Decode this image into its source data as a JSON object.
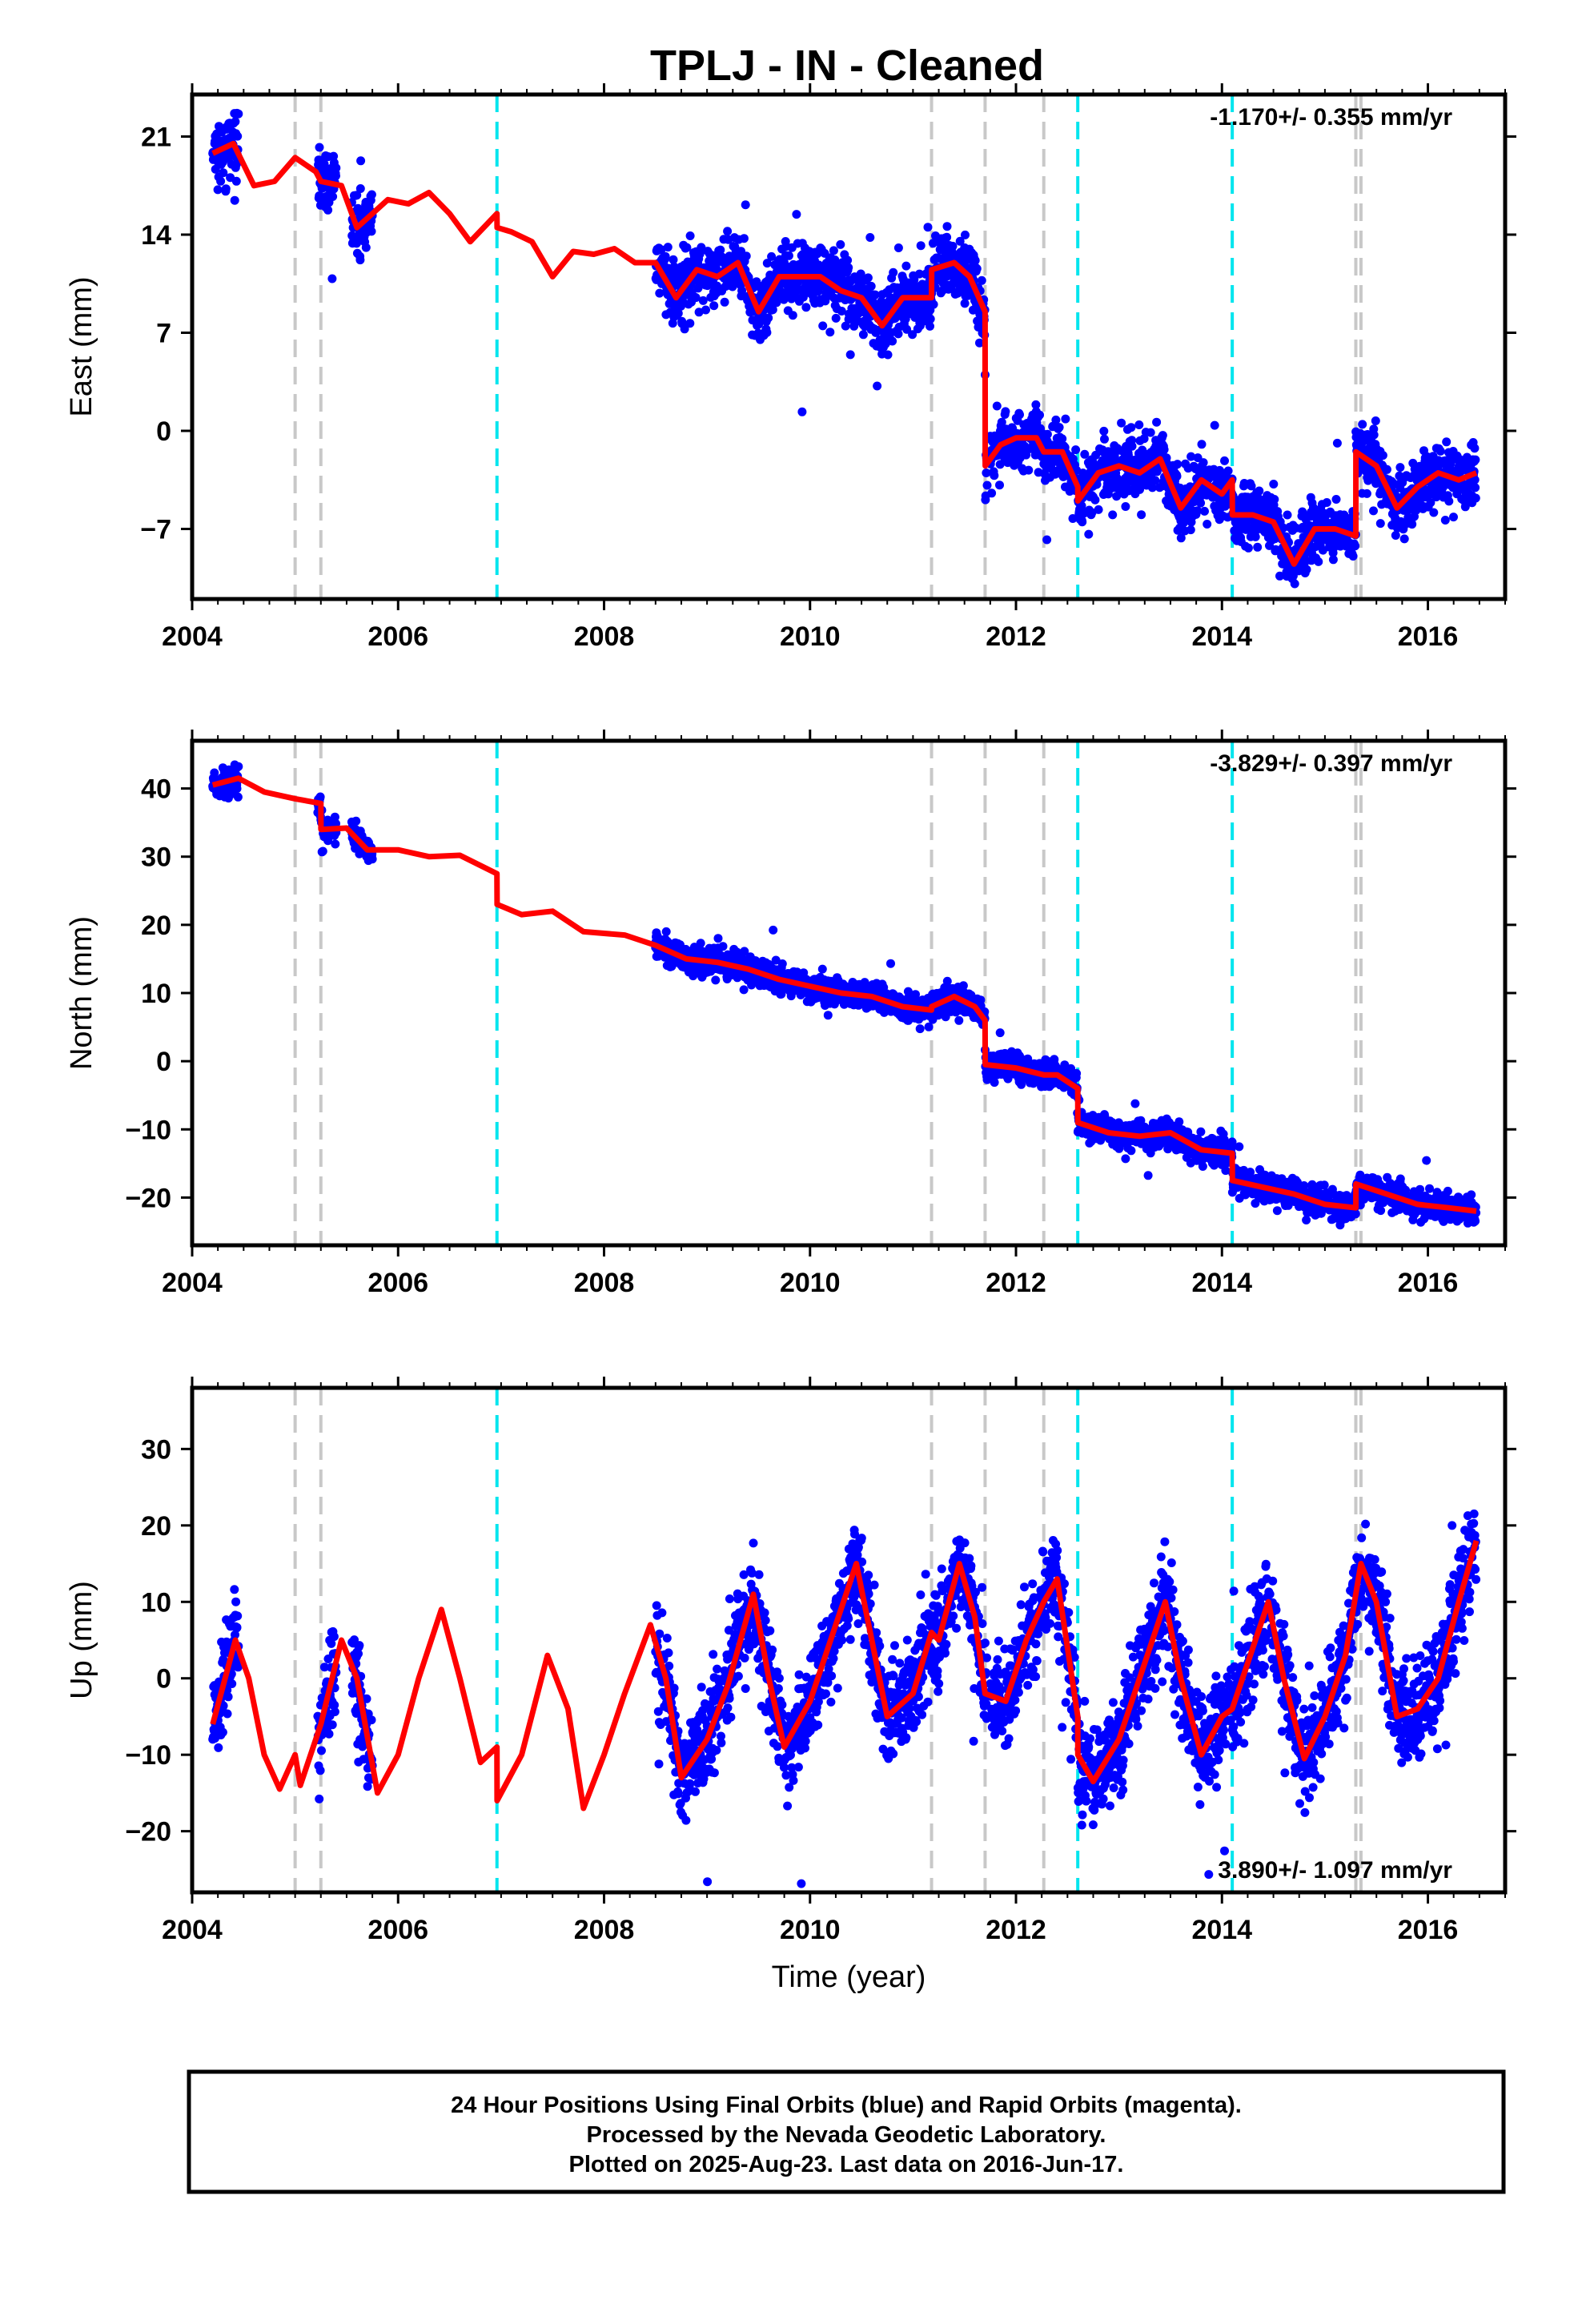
{
  "title": "TPLJ  - IN - Cleaned",
  "footer": {
    "lines": [
      "24 Hour Positions Using Final Orbits (blue) and Rapid Orbits (magenta).",
      "Processed by the Nevada Geodetic Laboratory.",
      "Plotted on 2025-Aug-23. Last data on 2016-Jun-17."
    ]
  },
  "colors": {
    "points": "#0000ff",
    "model": "#ff0000",
    "equipment_change": "#c8c8c8",
    "earthquake": "#00e5ee"
  },
  "chart_data": [
    {
      "type": "scatter",
      "component": "east",
      "ylabel": "East (mm)",
      "xlabel": "",
      "xlim": [
        2004.0,
        2016.75
      ],
      "ylim": [
        -12,
        24
      ],
      "xticks": [
        2004,
        2006,
        2008,
        2010,
        2012,
        2014,
        2016
      ],
      "yticks": [
        -7,
        0,
        7,
        14,
        21
      ],
      "ytick_labels": [
        "−7",
        "0",
        "7",
        "14",
        "21"
      ],
      "rate_text": "-1.170+/- 0.355 mm/yr",
      "rate_position": "top-right",
      "gray_lines": [
        2005.0,
        2005.25,
        2011.18,
        2011.7,
        2012.27,
        2015.3,
        2015.35
      ],
      "cyan_lines": [
        2006.96,
        2012.6,
        2014.1
      ],
      "data_ranges": [
        [
          2004.2,
          2004.45
        ],
        [
          2005.22,
          2005.4
        ],
        [
          2005.55,
          2005.75
        ],
        [
          2008.5,
          2011.72
        ],
        [
          2011.75,
          2016.47
        ]
      ],
      "model": {
        "x": [
          2004.2,
          2004.4,
          2004.6,
          2004.8,
          2005.0,
          2005.2,
          2005.25,
          2005.45,
          2005.6,
          2005.75,
          2005.9,
          2006.1,
          2006.3,
          2006.5,
          2006.7,
          2006.96,
          2006.961,
          2007.1,
          2007.3,
          2007.5,
          2007.7,
          2007.9,
          2008.1,
          2008.3,
          2008.5,
          2008.7,
          2008.9,
          2009.1,
          2009.3,
          2009.5,
          2009.7,
          2009.9,
          2010.1,
          2010.3,
          2010.5,
          2010.7,
          2010.9,
          2011.1,
          2011.18,
          2011.181,
          2011.4,
          2011.55,
          2011.7,
          2011.701,
          2011.85,
          2012.0,
          2012.2,
          2012.27,
          2012.45,
          2012.6,
          2012.601,
          2012.8,
          2013.0,
          2013.2,
          2013.4,
          2013.6,
          2013.8,
          2014.0,
          2014.1,
          2014.101,
          2014.3,
          2014.5,
          2014.7,
          2014.9,
          2015.1,
          2015.3,
          2015.301,
          2015.5,
          2015.7,
          2015.9,
          2016.1,
          2016.3,
          2016.47
        ],
        "y": [
          19.8,
          20.5,
          17.5,
          17.8,
          19.5,
          18.5,
          17.8,
          17.5,
          14.5,
          15.5,
          16.5,
          16.2,
          17.0,
          15.5,
          13.5,
          15.5,
          14.5,
          14.2,
          13.5,
          11.0,
          12.8,
          12.6,
          13.0,
          12.0,
          12.0,
          9.5,
          11.5,
          11.0,
          12.0,
          8.5,
          11.0,
          11.0,
          11.0,
          10.0,
          9.5,
          7.5,
          9.5,
          9.5,
          9.5,
          11.5,
          12.0,
          11.0,
          8.5,
          -2.5,
          -1.0,
          -0.5,
          -0.5,
          -1.5,
          -1.5,
          -4.0,
          -5.0,
          -3.0,
          -2.5,
          -3.0,
          -2.0,
          -5.5,
          -3.5,
          -4.5,
          -3.5,
          -6.0,
          -6.0,
          -6.5,
          -9.5,
          -7.0,
          -7.0,
          -7.5,
          -1.5,
          -2.5,
          -5.5,
          -4.0,
          -3.0,
          -3.5,
          -3.0
        ]
      }
    },
    {
      "type": "scatter",
      "component": "north",
      "ylabel": "North (mm)",
      "xlabel": "",
      "xlim": [
        2004.0,
        2016.75
      ],
      "ylim": [
        -27,
        47
      ],
      "xticks": [
        2004,
        2006,
        2008,
        2010,
        2012,
        2014,
        2016
      ],
      "yticks": [
        -20,
        -10,
        0,
        10,
        20,
        30,
        40
      ],
      "ytick_labels": [
        "−20",
        "−10",
        "0",
        "10",
        "20",
        "30",
        "40"
      ],
      "rate_text": "-3.829+/- 0.397 mm/yr",
      "rate_position": "top-right",
      "gray_lines": [
        2005.0,
        2005.25,
        2011.18,
        2011.7,
        2012.27,
        2015.3,
        2015.35
      ],
      "cyan_lines": [
        2006.96,
        2012.6,
        2014.1
      ],
      "data_ranges": [
        [
          2004.2,
          2004.45
        ],
        [
          2005.22,
          2005.4
        ],
        [
          2005.55,
          2005.75
        ],
        [
          2008.5,
          2011.72
        ],
        [
          2011.75,
          2016.47
        ]
      ],
      "model": {
        "x": [
          2004.2,
          2004.45,
          2004.7,
          2005.0,
          2005.25,
          2005.251,
          2005.5,
          2005.7,
          2006.0,
          2006.3,
          2006.6,
          2006.96,
          2006.961,
          2007.2,
          2007.5,
          2007.8,
          2008.2,
          2008.5,
          2008.8,
          2009.1,
          2009.4,
          2009.7,
          2010.0,
          2010.3,
          2010.6,
          2010.9,
          2011.18,
          2011.181,
          2011.4,
          2011.6,
          2011.7,
          2011.701,
          2012.0,
          2012.27,
          2012.4,
          2012.6,
          2012.601,
          2012.9,
          2013.2,
          2013.5,
          2013.8,
          2014.1,
          2014.101,
          2014.4,
          2014.7,
          2015.0,
          2015.3,
          2015.301,
          2015.6,
          2015.9,
          2016.2,
          2016.47
        ],
        "y": [
          40.5,
          41.5,
          39.5,
          38.5,
          37.8,
          34.0,
          34.2,
          31.0,
          31.0,
          30.0,
          30.2,
          27.5,
          23.0,
          21.5,
          22.0,
          19.0,
          18.5,
          17.0,
          15.0,
          14.5,
          13.5,
          12.0,
          11.0,
          10.0,
          9.5,
          8.0,
          7.5,
          8.0,
          9.5,
          8.0,
          6.0,
          -0.5,
          -1.0,
          -2.0,
          -2.0,
          -4.0,
          -9.0,
          -10.5,
          -11.0,
          -10.5,
          -13.0,
          -13.5,
          -17.5,
          -18.5,
          -19.5,
          -21.0,
          -21.5,
          -18.0,
          -19.5,
          -21.0,
          -21.5,
          -22.0
        ]
      }
    },
    {
      "type": "scatter",
      "component": "up",
      "ylabel": "Up (mm)",
      "xlabel": "Time (year)",
      "xlim": [
        2004.0,
        2016.75
      ],
      "ylim": [
        -28,
        38
      ],
      "xticks": [
        2004,
        2006,
        2008,
        2010,
        2012,
        2014,
        2016
      ],
      "yticks": [
        -20,
        -10,
        0,
        10,
        20,
        30
      ],
      "ytick_labels": [
        "−20",
        "−10",
        "0",
        "10",
        "20",
        "30"
      ],
      "rate_text": "3.890+/- 1.097 mm/yr",
      "rate_position": "bottom-right",
      "gray_lines": [
        2005.0,
        2005.25,
        2011.18,
        2011.7,
        2012.27,
        2015.3,
        2015.35
      ],
      "cyan_lines": [
        2006.96,
        2012.6,
        2014.1
      ],
      "data_ranges": [
        [
          2004.2,
          2004.45
        ],
        [
          2005.22,
          2005.4
        ],
        [
          2005.55,
          2005.75
        ],
        [
          2008.5,
          2011.72
        ],
        [
          2011.75,
          2016.47
        ]
      ],
      "model": {
        "x": [
          2004.2,
          2004.3,
          2004.42,
          2004.55,
          2004.7,
          2004.85,
          2005.0,
          2005.05,
          2005.25,
          2005.45,
          2005.6,
          2005.8,
          2006.0,
          2006.2,
          2006.42,
          2006.6,
          2006.8,
          2006.96,
          2006.961,
          2007.2,
          2007.45,
          2007.65,
          2007.8,
          2008.0,
          2008.2,
          2008.45,
          2008.6,
          2008.75,
          2009.0,
          2009.2,
          2009.45,
          2009.6,
          2009.75,
          2010.0,
          2010.2,
          2010.45,
          2010.6,
          2010.75,
          2011.0,
          2011.18,
          2011.25,
          2011.45,
          2011.6,
          2011.7,
          2011.9,
          2012.1,
          2012.27,
          2012.4,
          2012.6,
          2012.601,
          2012.75,
          2013.0,
          2013.2,
          2013.45,
          2013.6,
          2013.8,
          2014.0,
          2014.1,
          2014.2,
          2014.45,
          2014.6,
          2014.8,
          2015.0,
          2015.2,
          2015.35,
          2015.5,
          2015.7,
          2015.9,
          2016.1,
          2016.3,
          2016.47
        ],
        "y": [
          -6.0,
          -1.0,
          5.0,
          0.0,
          -10.0,
          -14.5,
          -10.0,
          -14.0,
          -6.0,
          5.0,
          0.0,
          -15.0,
          -10.0,
          0.0,
          9.0,
          0.0,
          -11.0,
          -9.0,
          -16.0,
          -10.0,
          3.0,
          -4.0,
          -17.0,
          -10.0,
          -2.0,
          7.0,
          0.0,
          -13.0,
          -8.0,
          -1.0,
          11.0,
          0.0,
          -9.0,
          -3.0,
          5.0,
          15.0,
          5.0,
          -5.0,
          -2.0,
          6.0,
          5.0,
          15.0,
          8.0,
          -2.0,
          -3.0,
          5.0,
          10.0,
          13.0,
          -5.0,
          -10.0,
          -13.5,
          -8.0,
          0.0,
          10.0,
          0.0,
          -10.0,
          -5.0,
          -4.0,
          0.0,
          10.0,
          0.0,
          -10.5,
          -5.0,
          3.0,
          15.0,
          10.0,
          -5.0,
          -4.0,
          0.0,
          10.0,
          18.0
        ]
      }
    }
  ]
}
